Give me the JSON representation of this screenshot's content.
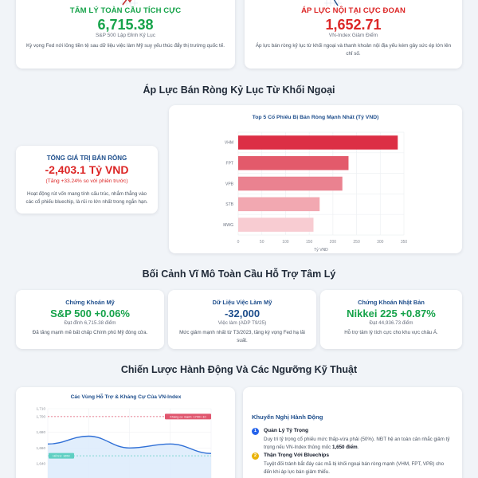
{
  "top_cards": [
    {
      "icon": "trend-up-chart-icon",
      "heading": "TÂM LÝ TOÀN CẦU TÍCH CỰC",
      "value": "6,715.38",
      "subtitle": "S&P 500 Lập Đỉnh Kỷ Lục",
      "description": "Kỳ vọng Fed nới lỏng tiền tệ sau dữ liệu việc làm Mỹ suy yếu thúc đẩy thị trường quốc tế.",
      "color": "#16a34a"
    },
    {
      "icon": "trend-down-chart-icon",
      "heading": "ÁP LỰC NỘI TẠI CỰC ĐOAN",
      "value": "1,652.71",
      "subtitle": "VN-Index Giảm Điểm",
      "description": "Áp lực bán ròng kỷ lục từ khối ngoại và thanh khoản nội địa yếu kém gây sức ép lớn lên chỉ số.",
      "color": "#dc2626"
    }
  ],
  "sections": {
    "net_selling": "Áp Lực Bán Ròng Kỷ Lục Từ Khối Ngoại",
    "macro": "Bối Cảnh Vĩ Mô Toàn Cầu Hỗ Trợ Tâm Lý",
    "strategy": "Chiến Lược Hành Động Và Các Ngưỡng Kỹ Thuật"
  },
  "net_selling_summary": {
    "heading": "TỔNG GIÁ TRỊ BÁN RÒNG",
    "value": "-2,403.1 Tỷ VND",
    "change": "(Tăng +33.24% so với phiên trước)",
    "description": "Hoạt động rút vốn mang tính cấu trúc, nhắm thẳng vào các cổ phiếu bluechip, là rủi ro lớn nhất trong ngắn hạn."
  },
  "macro_cards": [
    {
      "heading": "Chứng Khoán Mỹ",
      "value": "S&P 500 +0.06%",
      "subtitle": "Đạt đỉnh 6,715.38 điểm",
      "description": "Đã tăng mạnh mẽ bất chấp Chính phủ Mỹ đóng cửa.",
      "color": "#16a34a"
    },
    {
      "heading": "Dữ Liệu Việc Làm Mỹ",
      "value": "-32,000",
      "subtitle": "Việc làm (ADP T9/25)",
      "description": "Mức giảm mạnh nhất từ T3/2023, tăng kỳ vọng Fed hạ lãi suất.",
      "color": "#1e4e8c"
    },
    {
      "heading": "Chứng Khoán Nhật Bản",
      "value": "Nikkei 225 +0.87%",
      "subtitle": "Đạt 44,936.73 điểm",
      "description": "Hỗ trợ tâm lý tích cực cho khu vực châu Á.",
      "color": "#16a34a"
    }
  ],
  "recommendations": {
    "title": "Khuyến Nghị Hành Động",
    "items": [
      {
        "number": "1",
        "title": "Quản Lý Tỷ Trọng",
        "body": "Duy trì tỷ trọng cổ phiếu mức thấp-vừa phải (50%). NĐT hệ an toàn cân nhắc giảm tỷ trọng nếu VN-Index thủng mốc ",
        "body_strong": "1,650 điểm",
        "body_end": ".",
        "badge_color": "#2563eb"
      },
      {
        "number": "2",
        "title": "Thận Trọng Với Bluechips",
        "body": "Tuyệt đối tránh bắt đáy các mã bị khối ngoại bán ròng mạnh (VHM, FPT, VPB) cho đến khi áp lực bán giảm thiểu.",
        "body_strong": "",
        "body_end": "",
        "badge_color": "#eab308"
      }
    ]
  },
  "chart_data": [
    {
      "type": "bar",
      "orientation": "horizontal",
      "title": "Top 5 Cổ Phiếu Bị Bán Ròng Mạnh Nhất (Tỷ VND)",
      "categories": [
        "VHM",
        "FPT",
        "VPB",
        "STB",
        "MWG"
      ],
      "values": [
        337,
        233,
        220,
        172,
        159
      ],
      "colors": [
        "#dc2f45",
        "#e35a6b",
        "#ea8290",
        "#f2a8b1",
        "#f8ccd2"
      ],
      "xlabel": "Tỷ VND",
      "ylabel": "",
      "xlim": [
        0,
        350
      ],
      "xticks": [
        0,
        50,
        100,
        150,
        200,
        250,
        300,
        350
      ],
      "grid": true,
      "legend": "none"
    },
    {
      "type": "line",
      "title": "Các Vùng Hỗ Trợ & Kháng Cự Của VN-Index",
      "x": [
        0,
        1,
        2,
        3,
        4
      ],
      "values": [
        1665,
        1675,
        1660,
        1665,
        1653
      ],
      "ylim": [
        1630,
        1710
      ],
      "yticks": [
        "1,710",
        "1,700",
        "1,680",
        "1,660",
        "1,640"
      ],
      "ytick_values": [
        1710,
        1700,
        1680,
        1660,
        1640
      ],
      "line_color": "#2f6fd6",
      "fill_color": "#dcebfb",
      "grid": true,
      "annotations": [
        {
          "label": "Kháng cự mạnh: 1700+-10",
          "value": 1700,
          "color": "#e0566e",
          "position": "right"
        },
        {
          "label": "Hỗ trợ: 1650",
          "value": 1650,
          "color": "#5fcfc2",
          "position": "left"
        }
      ]
    }
  ]
}
